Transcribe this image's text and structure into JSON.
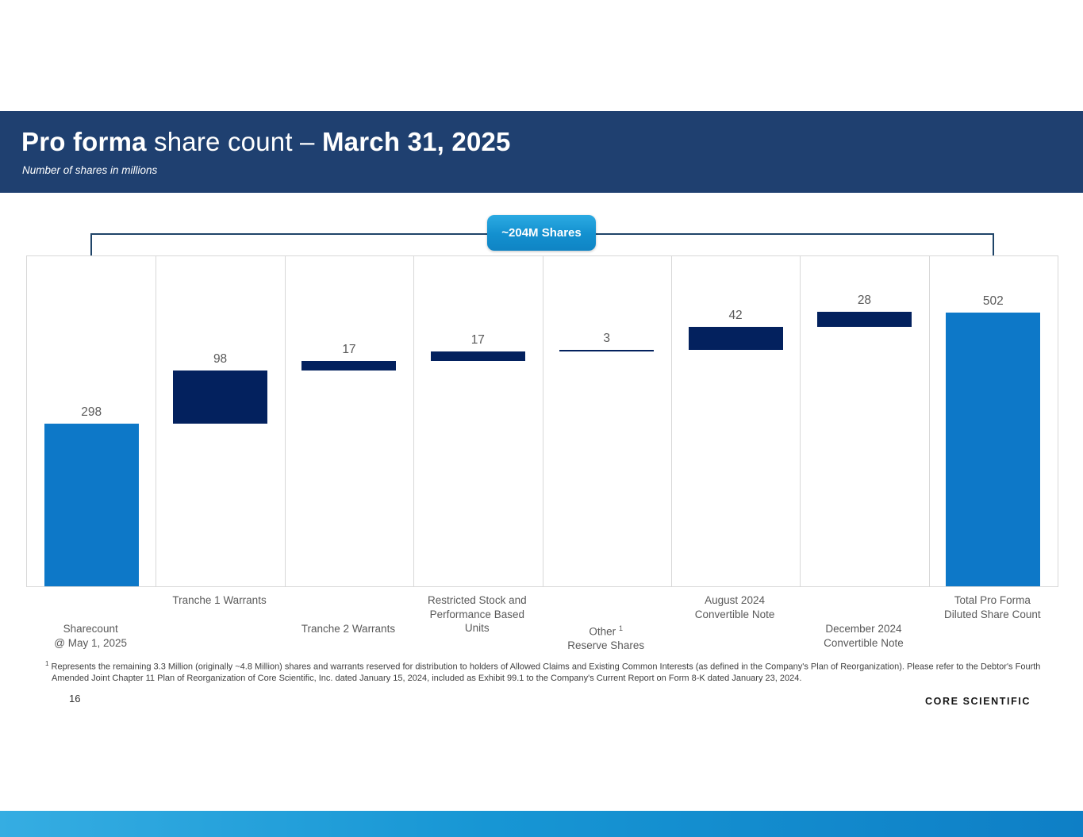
{
  "header": {
    "title_bold1": "Pro forma",
    "title_mid": " share count – ",
    "title_bold2": "March 31, 2025",
    "subtitle": "Number of shares in millions"
  },
  "callout": {
    "label": "~204M Shares"
  },
  "chart_data": {
    "type": "bar",
    "subtype": "waterfall",
    "title": "Pro forma share count – March 31, 2025",
    "units": "millions of shares",
    "ylim": [
      0,
      605
    ],
    "grid": false,
    "legend": "none",
    "values": [
      298,
      98,
      17,
      17,
      3,
      42,
      28,
      502
    ],
    "roles": [
      "total",
      "delta",
      "delta",
      "delta",
      "delta",
      "delta",
      "delta",
      "total"
    ],
    "categories": [
      {
        "lines": [
          "Sharecount",
          "@ May 1, 2025"
        ],
        "row": "lower"
      },
      {
        "lines": [
          "Tranche 1 Warrants"
        ],
        "row": "upper"
      },
      {
        "lines": [
          "Tranche 2 Warrants"
        ],
        "row": "lower"
      },
      {
        "lines": [
          "Restricted Stock and",
          "Performance Based",
          "Units"
        ],
        "row": "upper"
      },
      {
        "lines": [
          "Other",
          "Reserve Shares"
        ],
        "row": "lower",
        "sup": {
          "line": 0,
          "text": "1"
        }
      },
      {
        "lines": [
          "August 2024",
          "Convertible Note"
        ],
        "row": "upper"
      },
      {
        "lines": [
          "December 2024",
          "Convertible Note"
        ],
        "row": "lower"
      },
      {
        "lines": [
          "Total Pro Forma",
          "Diluted Share Count"
        ],
        "row": "upper"
      }
    ],
    "colors": {
      "total_bar": "#0D78C8",
      "delta_bar": "#03215E",
      "value_label": "#595959",
      "bracket_line": "#1F4468",
      "header_band": "#1F4070",
      "callout_top": "#2BAAE2",
      "callout_bottom": "#0F84C4"
    }
  },
  "footnote": {
    "marker": "1",
    "text": "Represents the remaining  3.3 Million (originally ~4.8 Million) shares and warrants reserved for distribution to holders of Allowed Claims and Existing Common Interests (as defined in the Company's Plan of Reorganization). Please refer to the Debtor's Fourth Amended Joint Chapter 11 Plan of Reorganization of Core Scientific, Inc. dated January 15, 2024, included as Exhibit 99.1 to the Company's Current Report on Form 8-K dated January 23, 2024."
  },
  "footer": {
    "page_number": "16",
    "logo_text": "CORE SCIENTIFIC"
  }
}
